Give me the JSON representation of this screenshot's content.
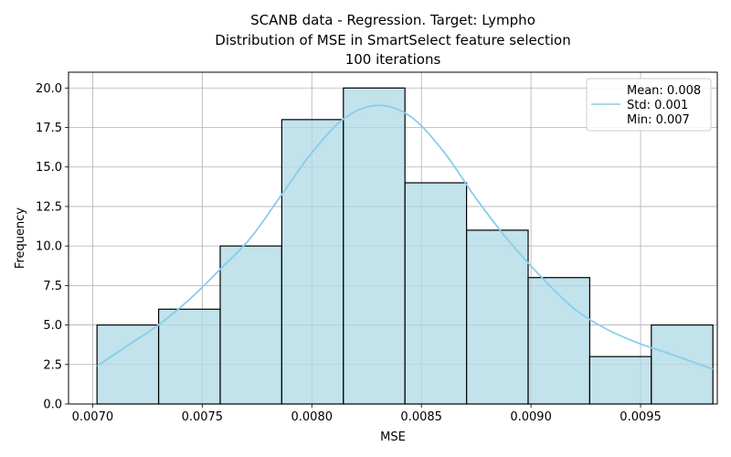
{
  "chart_data": {
    "type": "bar",
    "title_lines": [
      "SCANB data - Regression. Target: Lympho",
      "Distribution of MSE in SmartSelect feature selection",
      "100 iterations"
    ],
    "xlabel": "MSE",
    "ylabel": "Frequency",
    "xlim": [
      0.00689,
      0.00985
    ],
    "ylim": [
      0,
      21
    ],
    "grid": true,
    "x_ticks": [
      "0.0070",
      "0.0075",
      "0.0080",
      "0.0085",
      "0.0090",
      "0.0095"
    ],
    "y_ticks": [
      "0.0",
      "2.5",
      "5.0",
      "7.5",
      "10.0",
      "12.5",
      "15.0",
      "17.5",
      "20.0"
    ],
    "bin_edges": [
      0.00702,
      0.007301,
      0.007582,
      0.007863,
      0.008144,
      0.008425,
      0.008706,
      0.008987,
      0.009268,
      0.009549,
      0.00983
    ],
    "values": [
      5,
      6,
      10,
      18,
      20,
      14,
      11,
      8,
      3,
      5
    ],
    "bar_color": "#add8e6",
    "bar_edge_color": "#000000",
    "kde_color": "#87ceeb",
    "kde": {
      "x": [
        0.00702,
        0.00716,
        0.0073,
        0.00744,
        0.00758,
        0.00772,
        0.00786,
        0.008,
        0.00815,
        0.0083,
        0.00845,
        0.0086,
        0.00875,
        0.0089,
        0.00905,
        0.0092,
        0.00935,
        0.0095,
        0.00965,
        0.00983
      ],
      "y": [
        2.4,
        3.7,
        5.0,
        6.6,
        8.5,
        10.5,
        13.2,
        15.9,
        18.1,
        18.9,
        18.2,
        16.0,
        13.0,
        10.3,
        8.0,
        6.0,
        4.7,
        3.8,
        3.1,
        2.2
      ]
    },
    "legend": {
      "placement": "top-right",
      "entries": [
        "Mean: 0.008",
        "Std: 0.001",
        "Min: 0.007"
      ]
    }
  }
}
